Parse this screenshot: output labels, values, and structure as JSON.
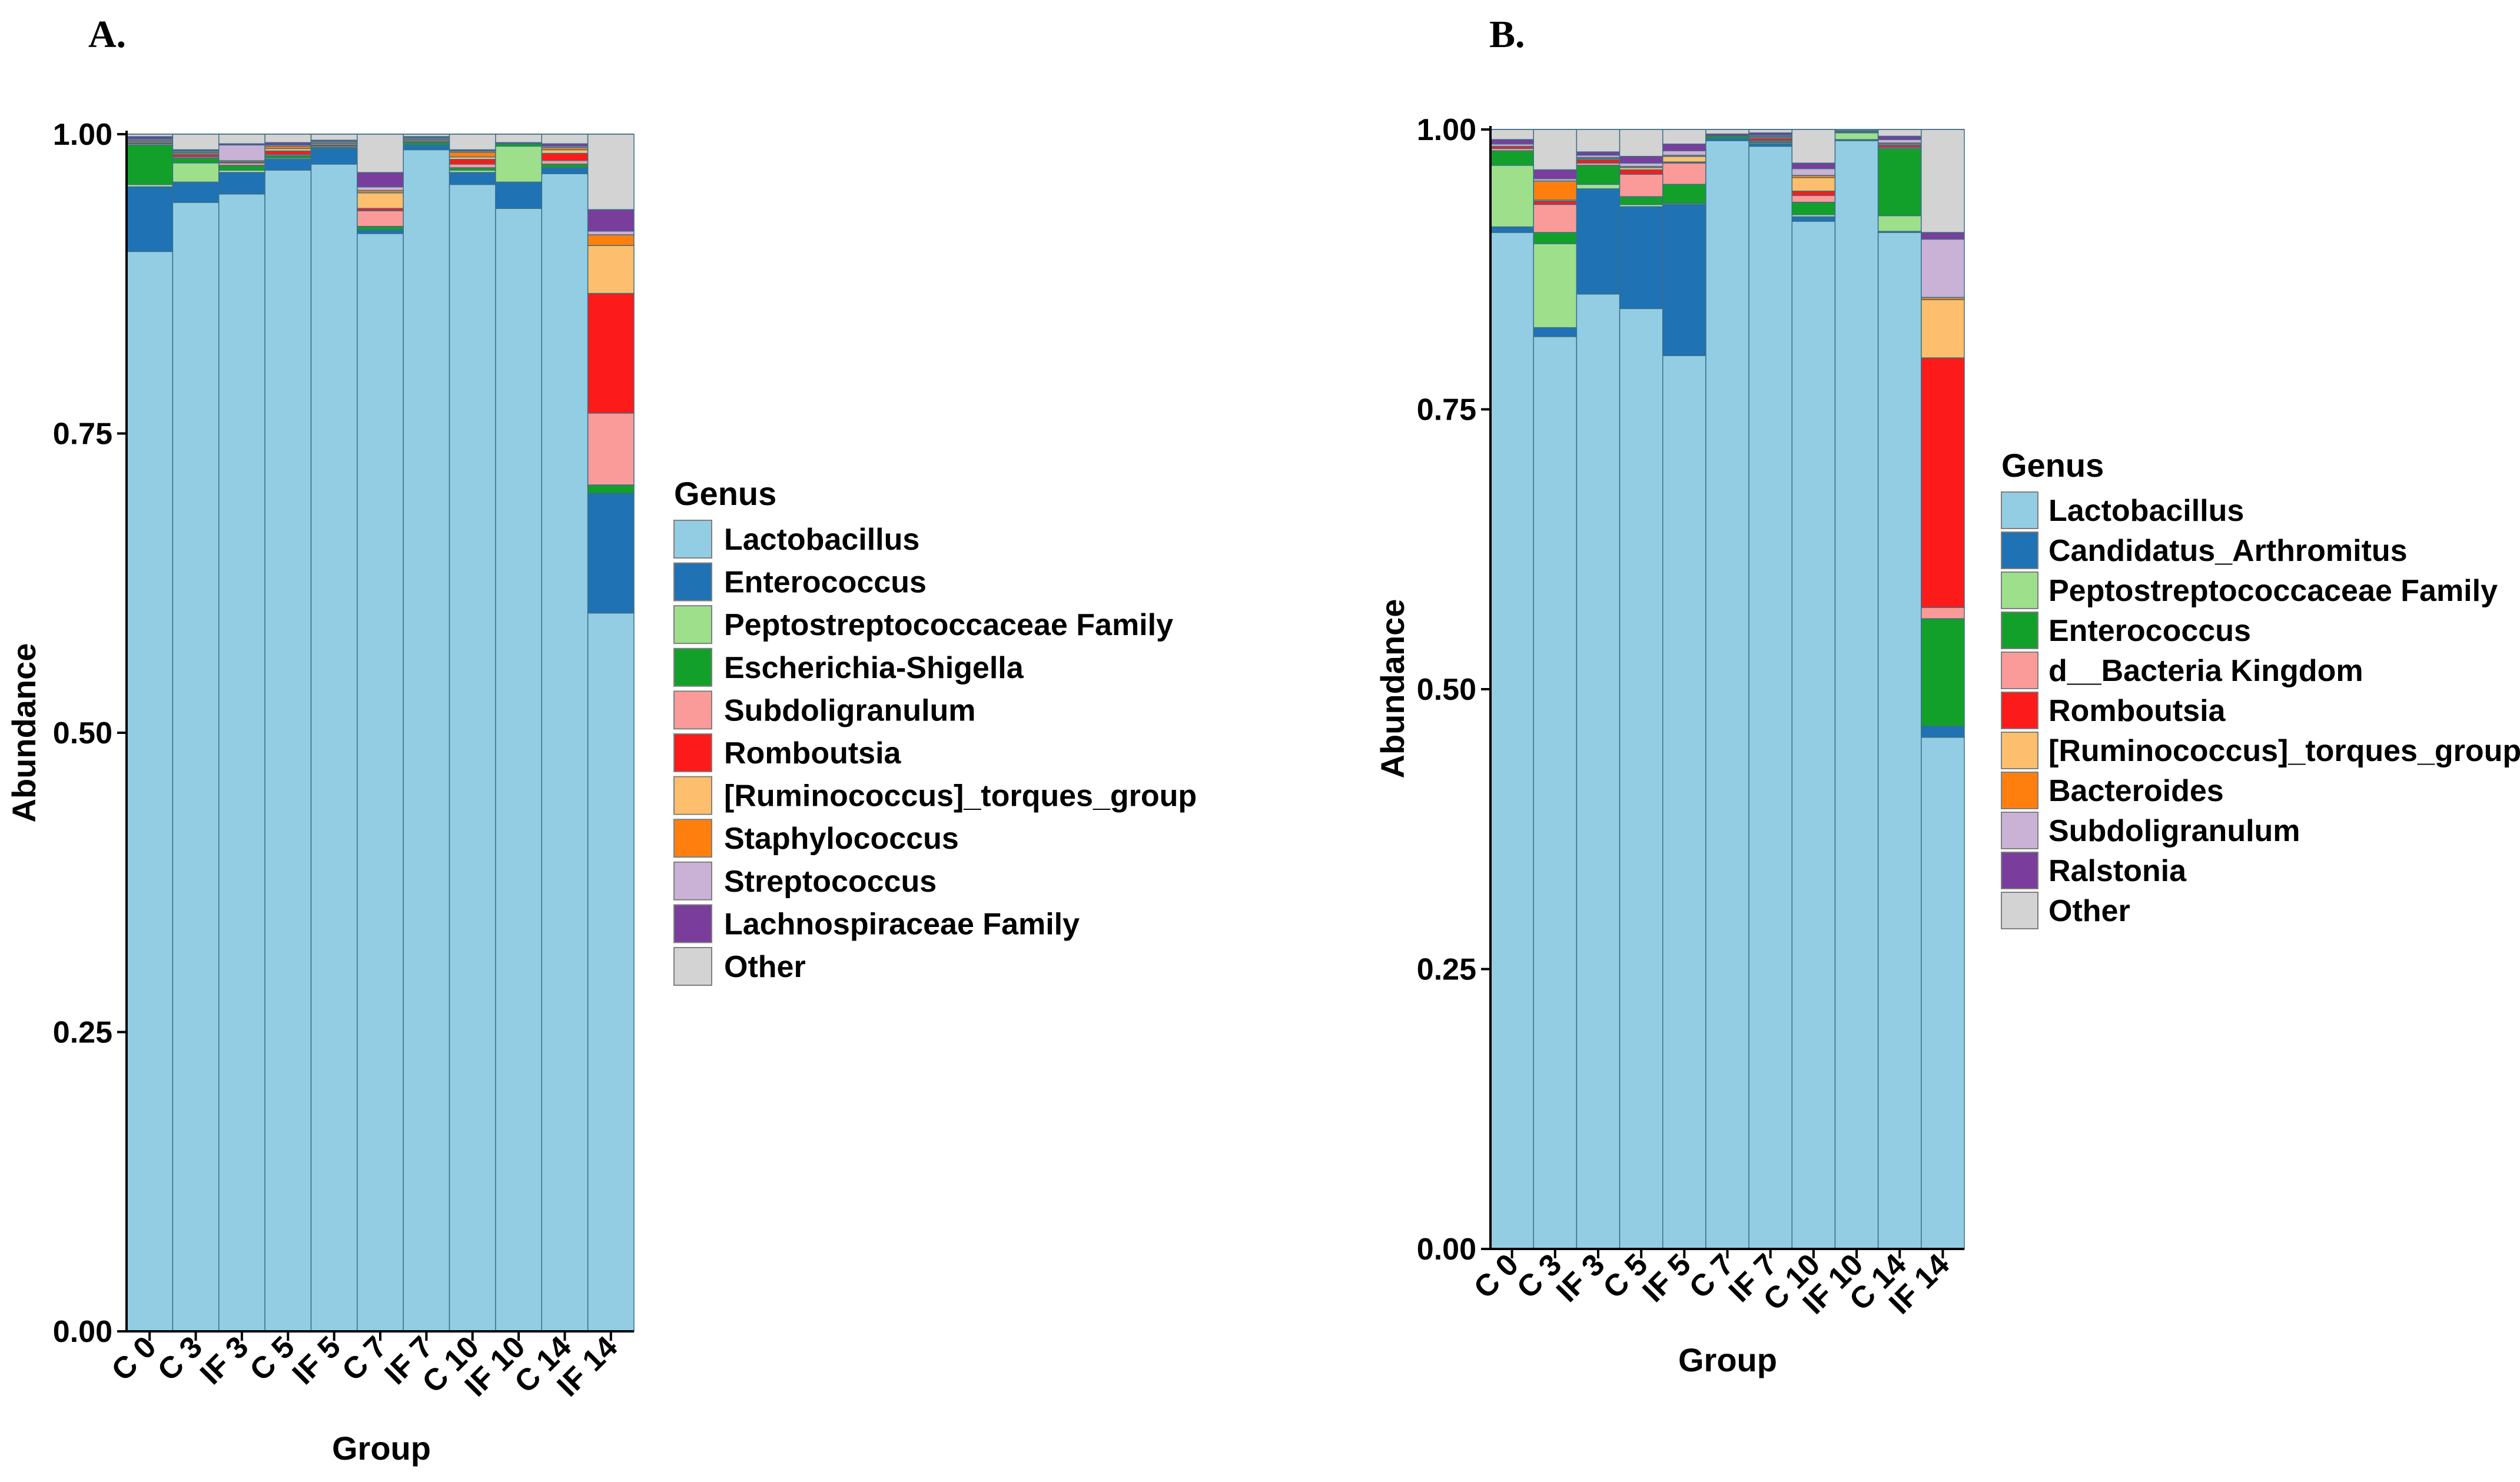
{
  "chart_data": [
    {
      "type": "bar",
      "stacked": true,
      "panel": "A.",
      "xlabel": "Group",
      "ylabel": "Abundance",
      "ylim": [
        0,
        1
      ],
      "yticks": [
        0.0,
        0.25,
        0.5,
        0.75,
        1.0
      ],
      "ytick_labels": [
        "0.00",
        "0.25",
        "0.50",
        "0.75",
        "1.00"
      ],
      "categories": [
        "C 0",
        "C 3",
        "IF 3",
        "C 5",
        "IF 5",
        "C 7",
        "IF 7",
        "C 10",
        "IF 10",
        "C 14",
        "IF 14"
      ],
      "legend_title": "Genus",
      "legend_position": "right",
      "series": [
        {
          "name": "Lactobacillus",
          "color": "#93cde4",
          "values": [
            0.902,
            0.943,
            0.95,
            0.97,
            0.975,
            0.917,
            0.987,
            0.958,
            0.938,
            0.967,
            0.6
          ]
        },
        {
          "name": "Enterococcus",
          "color": "#1f72b4",
          "values": [
            0.054,
            0.017,
            0.018,
            0.009,
            0.013,
            0.003,
            0.004,
            0.01,
            0.022,
            0.005,
            0.1
          ]
        },
        {
          "name": "Peptostreptococcaceae Family",
          "color": "#9edf8c",
          "values": [
            0.002,
            0.016,
            0.002,
            0.001,
            0.0,
            0.0,
            0.0,
            0.002,
            0.03,
            0.0,
            0.0
          ]
        },
        {
          "name": "Escherichia-Shigella",
          "color": "#13a02a",
          "values": [
            0.033,
            0.004,
            0.004,
            0.002,
            0.001,
            0.003,
            0.002,
            0.002,
            0.002,
            0.003,
            0.007
          ]
        },
        {
          "name": "Subdoligranulum",
          "color": "#fb9b99",
          "values": [
            0.001,
            0.001,
            0.002,
            0.001,
            0.001,
            0.013,
            0.0,
            0.003,
            0.0,
            0.003,
            0.06
          ]
        },
        {
          "name": "Romboutsia",
          "color": "#fc1a1a",
          "values": [
            0.001,
            0.002,
            0.001,
            0.003,
            0.001,
            0.002,
            0.001,
            0.004,
            0.0,
            0.006,
            0.1
          ]
        },
        {
          "name": "[Ruminococcus]_torques_group",
          "color": "#fdbf6d",
          "values": [
            0.001,
            0.001,
            0.001,
            0.002,
            0.001,
            0.013,
            0.001,
            0.002,
            0.0,
            0.003,
            0.04
          ]
        },
        {
          "name": "Staphylococcus",
          "color": "#ff7f0e",
          "values": [
            0.001,
            0.001,
            0.0,
            0.002,
            0.001,
            0.002,
            0.001,
            0.004,
            0.0,
            0.002,
            0.009
          ]
        },
        {
          "name": "Streptococcus",
          "color": "#cab2d6",
          "values": [
            0.001,
            0.001,
            0.013,
            0.001,
            0.001,
            0.003,
            0.001,
            0.001,
            0.0,
            0.001,
            0.003
          ]
        },
        {
          "name": "Lachnospiraceae Family",
          "color": "#7a3d9c",
          "values": [
            0.002,
            0.001,
            0.001,
            0.002,
            0.001,
            0.012,
            0.001,
            0.001,
            0.001,
            0.002,
            0.018
          ]
        },
        {
          "name": "Other",
          "color": "#d3d3d3",
          "values": [
            0.002,
            0.013,
            0.008,
            0.007,
            0.005,
            0.032,
            0.002,
            0.013,
            0.007,
            0.008,
            0.063
          ]
        }
      ]
    },
    {
      "type": "bar",
      "stacked": true,
      "panel": "B.",
      "xlabel": "Group",
      "ylabel": "Abundance",
      "ylim": [
        0,
        1
      ],
      "yticks": [
        0.0,
        0.25,
        0.5,
        0.75,
        1.0
      ],
      "ytick_labels": [
        "0.00",
        "0.25",
        "0.50",
        "0.75",
        "1.00"
      ],
      "categories": [
        "C 0",
        "C 3",
        "IF 3",
        "C 5",
        "IF 5",
        "C 7",
        "IF 7",
        "C 10",
        "IF 10",
        "C 14",
        "IF 14"
      ],
      "legend_title": "Genus",
      "legend_position": "right",
      "series": [
        {
          "name": "Lactobacillus",
          "color": "#93cde4",
          "values": [
            0.908,
            0.815,
            0.853,
            0.84,
            0.798,
            0.99,
            0.985,
            0.918,
            0.99,
            0.908,
            0.457
          ]
        },
        {
          "name": "Candidatus_Arthromitus",
          "color": "#1f72b4",
          "values": [
            0.005,
            0.008,
            0.094,
            0.091,
            0.135,
            0.002,
            0.002,
            0.004,
            0.001,
            0.001,
            0.01
          ]
        },
        {
          "name": "Peptostreptococcaceae Family",
          "color": "#9edf8c",
          "values": [
            0.055,
            0.075,
            0.004,
            0.002,
            0.001,
            0.0,
            0.001,
            0.002,
            0.006,
            0.014,
            0.0
          ]
        },
        {
          "name": "Enterococcus",
          "color": "#13a02a",
          "values": [
            0.013,
            0.01,
            0.017,
            0.007,
            0.017,
            0.002,
            0.001,
            0.011,
            0.001,
            0.06,
            0.096
          ]
        },
        {
          "name": "d__Bacteria Kingdom",
          "color": "#fb9b99",
          "values": [
            0.002,
            0.025,
            0.002,
            0.02,
            0.019,
            0.0,
            0.001,
            0.006,
            0.0,
            0.001,
            0.01
          ]
        },
        {
          "name": "Romboutsia",
          "color": "#fc1a1a",
          "values": [
            0.002,
            0.003,
            0.003,
            0.004,
            0.001,
            0.0,
            0.002,
            0.004,
            0.0,
            0.002,
            0.223
          ]
        },
        {
          "name": "[Ruminococcus]_torques_group",
          "color": "#fdbf6d",
          "values": [
            0.0,
            0.001,
            0.001,
            0.002,
            0.005,
            0.0,
            0.001,
            0.012,
            0.0,
            0.001,
            0.052
          ]
        },
        {
          "name": "Bacteroides",
          "color": "#ff7f0e",
          "values": [
            0.0,
            0.017,
            0.001,
            0.001,
            0.001,
            0.0,
            0.001,
            0.002,
            0.0,
            0.001,
            0.002
          ]
        },
        {
          "name": "Subdoligranulum",
          "color": "#cab2d6",
          "values": [
            0.002,
            0.002,
            0.002,
            0.003,
            0.004,
            0.0,
            0.001,
            0.006,
            0.0,
            0.003,
            0.052
          ]
        },
        {
          "name": "Ralstonia",
          "color": "#7a3d9c",
          "values": [
            0.004,
            0.008,
            0.003,
            0.006,
            0.006,
            0.002,
            0.002,
            0.005,
            0.001,
            0.003,
            0.006
          ]
        },
        {
          "name": "Other",
          "color": "#d3d3d3",
          "values": [
            0.009,
            0.036,
            0.02,
            0.024,
            0.013,
            0.004,
            0.003,
            0.03,
            0.001,
            0.006,
            0.092
          ]
        }
      ]
    }
  ]
}
